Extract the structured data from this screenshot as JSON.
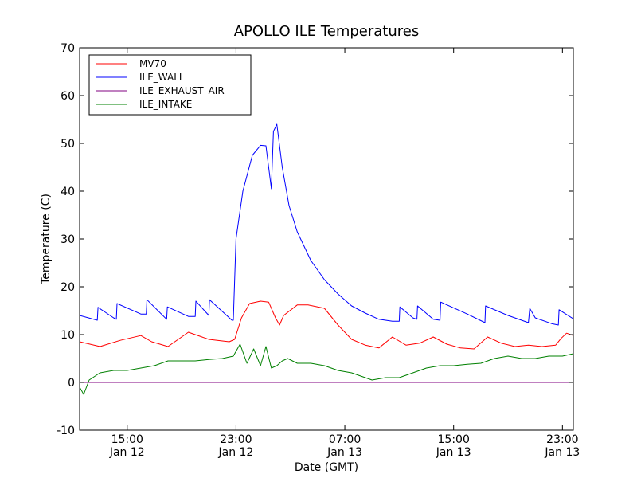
{
  "chart_data": {
    "type": "line",
    "title": "APOLLO ILE Temperatures",
    "xlabel": "Date (GMT)",
    "ylabel": "Temperature (C)",
    "ylim": [
      -10,
      70
    ],
    "yticks": [
      -10,
      0,
      10,
      20,
      30,
      40,
      50,
      60,
      70
    ],
    "xlim_hours": [
      11.5,
      47.8
    ],
    "xticks": [
      {
        "hour": 15,
        "time": "15:00",
        "date": "Jan 12"
      },
      {
        "hour": 23,
        "time": "23:00",
        "date": "Jan 12"
      },
      {
        "hour": 31,
        "time": "07:00",
        "date": "Jan 13"
      },
      {
        "hour": 39,
        "time": "15:00",
        "date": "Jan 13"
      },
      {
        "hour": 47,
        "time": "23:00",
        "date": "Jan 13"
      }
    ],
    "grid": false,
    "legend_position": "top-left",
    "series": [
      {
        "name": "MV70",
        "color": "#ff0000",
        "x": [
          11.5,
          13.0,
          14.5,
          16.0,
          16.8,
          18.0,
          19.5,
          21.0,
          22.5,
          22.9,
          23.4,
          24.0,
          24.8,
          25.4,
          25.9,
          26.2,
          26.5,
          27.5,
          28.3,
          29.5,
          30.5,
          31.5,
          32.5,
          33.5,
          34.5,
          35.5,
          36.5,
          37.5,
          38.5,
          39.5,
          40.5,
          41.5,
          42.5,
          43.5,
          44.5,
          45.5,
          46.5,
          46.9,
          47.3,
          47.8
        ],
        "y": [
          8.5,
          7.5,
          8.8,
          9.8,
          8.5,
          7.5,
          10.5,
          9.0,
          8.5,
          9.0,
          13.5,
          16.5,
          17.0,
          16.8,
          13.5,
          12.0,
          14.0,
          16.2,
          16.2,
          15.5,
          12.0,
          9.0,
          7.8,
          7.2,
          9.5,
          7.8,
          8.2,
          9.5,
          8.0,
          7.2,
          7.0,
          9.5,
          8.2,
          7.5,
          7.8,
          7.5,
          7.8,
          9.2,
          10.3,
          9.8
        ]
      },
      {
        "name": "ILE_WALL",
        "color": "#0000ff",
        "x": [
          11.5,
          12.8,
          12.85,
          14.0,
          14.2,
          14.25,
          16.0,
          16.4,
          16.45,
          17.9,
          17.95,
          19.5,
          20.0,
          20.05,
          21.0,
          21.05,
          22.7,
          22.8,
          23.0,
          23.5,
          24.2,
          24.8,
          25.2,
          25.6,
          25.75,
          26.0,
          26.4,
          26.9,
          27.5,
          28.5,
          29.5,
          30.5,
          31.5,
          32.5,
          33.5,
          34.5,
          35.0,
          35.05,
          36.0,
          36.3,
          36.35,
          37.5,
          38.0,
          38.05,
          40.0,
          41.3,
          41.35,
          43.0,
          44.5,
          44.6,
          45.0,
          46.2,
          46.7,
          46.75,
          47.8
        ],
        "y": [
          14.0,
          13.0,
          15.7,
          13.5,
          13.2,
          16.5,
          14.3,
          14.3,
          17.3,
          13.2,
          15.8,
          13.8,
          13.8,
          17.0,
          14.0,
          17.3,
          13.0,
          13.0,
          30.0,
          40.0,
          47.5,
          49.6,
          49.5,
          40.5,
          52.5,
          54.0,
          45.0,
          37.0,
          31.5,
          25.5,
          21.5,
          18.5,
          16.0,
          14.5,
          13.2,
          12.8,
          12.8,
          15.8,
          13.5,
          13.2,
          16.0,
          13.2,
          13.0,
          16.8,
          14.3,
          12.5,
          16.0,
          14.0,
          12.5,
          15.5,
          13.5,
          12.3,
          12.0,
          15.2,
          13.3
        ]
      },
      {
        "name": "ILE_EXHAUST_AIR",
        "color": "#800080",
        "x": [
          11.5,
          47.8
        ],
        "y": [
          0.0,
          0.0
        ]
      },
      {
        "name": "ILE_INTAKE",
        "color": "#008000",
        "x": [
          11.5,
          11.8,
          12.2,
          13.0,
          14.0,
          15.0,
          16.0,
          17.0,
          18.0,
          19.0,
          20.0,
          21.0,
          22.0,
          22.8,
          23.3,
          23.8,
          24.3,
          24.8,
          25.2,
          25.6,
          26.0,
          26.4,
          26.8,
          27.5,
          28.5,
          29.5,
          30.5,
          31.5,
          32.5,
          33.0,
          34.0,
          35.0,
          36.0,
          37.0,
          38.0,
          39.0,
          40.0,
          41.0,
          42.0,
          43.0,
          44.0,
          45.0,
          46.0,
          47.0,
          47.8
        ],
        "y": [
          -1.0,
          -2.5,
          0.5,
          2.0,
          2.5,
          2.5,
          3.0,
          3.5,
          4.5,
          4.5,
          4.5,
          4.8,
          5.0,
          5.5,
          8.0,
          4.0,
          7.0,
          3.5,
          7.5,
          3.0,
          3.5,
          4.5,
          5.0,
          4.0,
          4.0,
          3.5,
          2.5,
          2.0,
          1.0,
          0.5,
          1.0,
          1.0,
          2.0,
          3.0,
          3.5,
          3.5,
          3.8,
          4.0,
          5.0,
          5.5,
          5.0,
          5.0,
          5.5,
          5.5,
          6.0
        ]
      }
    ]
  }
}
